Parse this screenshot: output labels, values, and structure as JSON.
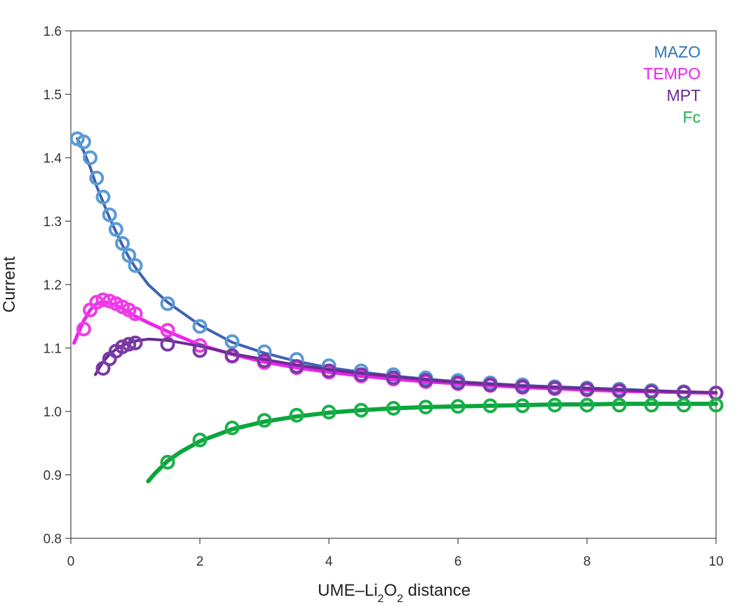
{
  "chart_data": {
    "type": "line",
    "ylabel": "Current",
    "xlabel": {
      "parts": [
        {
          "text": "UME–Li",
          "sub": false
        },
        {
          "text": "2",
          "sub": true
        },
        {
          "text": "O",
          "sub": false
        },
        {
          "text": "2",
          "sub": true
        },
        {
          "text": " distance",
          "sub": false
        }
      ]
    },
    "xlim": [
      0,
      10
    ],
    "ylim": [
      0.8,
      1.6
    ],
    "xticks": [
      0,
      2,
      4,
      6,
      8,
      10
    ],
    "xtick_labels": [
      "0",
      "2",
      "4",
      "6",
      "8",
      "10"
    ],
    "yticks": [
      0.8,
      0.9,
      1.0,
      1.1,
      1.2,
      1.3,
      1.4,
      1.5,
      1.6
    ],
    "ytick_labels": [
      "0.8",
      "0.9",
      "1.0",
      "1.1",
      "1.2",
      "1.3",
      "1.4",
      "1.5",
      "1.6"
    ],
    "grid": false,
    "legend_position": "top-right",
    "series": [
      {
        "name": "MAZO",
        "marker_color": "#5b9bd5",
        "line_color": "#3f62b5",
        "label_color": "#2e75b6",
        "line_width": 4,
        "line": {
          "x": [
            0.1,
            0.2,
            0.3,
            0.4,
            0.5,
            0.6,
            0.7,
            0.8,
            0.9,
            1.0,
            1.2,
            1.5,
            2.0,
            2.5,
            3.0,
            3.5,
            4.0,
            4.5,
            5.0,
            5.5,
            6.0,
            6.5,
            7.0,
            7.5,
            8.0,
            8.5,
            9.0,
            9.5,
            10.0
          ],
          "y": [
            1.43,
            1.41,
            1.385,
            1.355,
            1.33,
            1.305,
            1.283,
            1.262,
            1.243,
            1.227,
            1.2,
            1.172,
            1.136,
            1.109,
            1.092,
            1.079,
            1.069,
            1.062,
            1.056,
            1.051,
            1.047,
            1.044,
            1.041,
            1.039,
            1.037,
            1.035,
            1.033,
            1.031,
            1.029
          ]
        },
        "points": {
          "x": [
            0.1,
            0.2,
            0.3,
            0.4,
            0.5,
            0.6,
            0.7,
            0.8,
            0.9,
            1.0,
            1.5,
            2.0,
            2.5,
            3.0,
            3.5,
            4.0,
            4.5,
            5.0,
            5.5,
            6.0,
            6.5,
            7.0,
            7.5,
            8.0,
            8.5,
            9.0,
            9.5,
            10.0
          ],
          "y": [
            1.43,
            1.425,
            1.4,
            1.368,
            1.338,
            1.31,
            1.287,
            1.265,
            1.246,
            1.23,
            1.17,
            1.134,
            1.11,
            1.094,
            1.082,
            1.072,
            1.064,
            1.058,
            1.053,
            1.049,
            1.045,
            1.042,
            1.039,
            1.037,
            1.035,
            1.033,
            1.031,
            1.029
          ]
        }
      },
      {
        "name": "TEMPO",
        "marker_color": "#ee3ce6",
        "line_color": "#ee22ee",
        "label_color": "#ee22ee",
        "line_width": 5,
        "line": {
          "x": [
            0.05,
            0.1,
            0.2,
            0.3,
            0.4,
            0.5,
            0.6,
            0.7,
            0.8,
            0.9,
            1.0,
            1.2,
            1.5,
            2.0,
            2.5,
            3.0,
            3.5,
            4.0,
            4.5,
            5.0,
            5.5,
            6.0,
            6.5,
            7.0,
            7.5,
            8.0,
            8.5,
            9.0,
            9.5,
            10.0
          ],
          "y": [
            1.108,
            1.12,
            1.143,
            1.16,
            1.17,
            1.173,
            1.171,
            1.167,
            1.162,
            1.156,
            1.15,
            1.14,
            1.126,
            1.105,
            1.09,
            1.078,
            1.069,
            1.062,
            1.056,
            1.051,
            1.047,
            1.044,
            1.041,
            1.038,
            1.036,
            1.034,
            1.032,
            1.031,
            1.03,
            1.029
          ]
        },
        "points": {
          "x": [
            0.2,
            0.3,
            0.4,
            0.5,
            0.6,
            0.7,
            0.8,
            0.9,
            1.0,
            1.5,
            2.0,
            2.5,
            3.0,
            3.5,
            4.0,
            4.5,
            5.0,
            5.5,
            6.0,
            6.5,
            7.0,
            7.5,
            8.0,
            8.5,
            9.0,
            9.5,
            10.0
          ],
          "y": [
            1.13,
            1.16,
            1.172,
            1.176,
            1.174,
            1.17,
            1.165,
            1.16,
            1.154,
            1.128,
            1.104,
            1.087,
            1.077,
            1.069,
            1.062,
            1.056,
            1.051,
            1.047,
            1.044,
            1.041,
            1.038,
            1.036,
            1.034,
            1.032,
            1.031,
            1.03,
            1.029
          ]
        }
      },
      {
        "name": "MPT",
        "marker_color": "#7a3aa6",
        "line_color": "#6a2c91",
        "label_color": "#6a2c91",
        "line_width": 4,
        "line": {
          "x": [
            0.38,
            0.45,
            0.5,
            0.6,
            0.7,
            0.8,
            0.9,
            1.0,
            1.2,
            1.5,
            2.0,
            2.5,
            3.0,
            3.5,
            4.0,
            4.5,
            5.0,
            5.5,
            6.0,
            6.5,
            7.0,
            7.5,
            8.0,
            8.5,
            9.0,
            9.5,
            10.0
          ],
          "y": [
            1.058,
            1.07,
            1.078,
            1.09,
            1.098,
            1.104,
            1.108,
            1.111,
            1.114,
            1.112,
            1.103,
            1.091,
            1.082,
            1.073,
            1.066,
            1.06,
            1.055,
            1.05,
            1.046,
            1.043,
            1.04,
            1.038,
            1.036,
            1.034,
            1.032,
            1.031,
            1.03
          ]
        },
        "points": {
          "x": [
            0.5,
            0.6,
            0.7,
            0.8,
            0.9,
            1.0,
            1.5,
            2.0,
            2.5,
            3.0,
            3.5,
            4.0,
            4.5,
            5.0,
            5.5,
            6.0,
            6.5,
            7.0,
            7.5,
            8.0,
            8.5,
            9.0,
            9.5,
            10.0
          ],
          "y": [
            1.068,
            1.083,
            1.095,
            1.102,
            1.106,
            1.108,
            1.106,
            1.096,
            1.088,
            1.08,
            1.071,
            1.064,
            1.058,
            1.053,
            1.049,
            1.045,
            1.042,
            1.039,
            1.037,
            1.035,
            1.033,
            1.031,
            1.03,
            1.029
          ]
        }
      },
      {
        "name": "Fc",
        "marker_color": "#19b04b",
        "line_color": "#0aa53c",
        "label_color": "#19b04b",
        "line_width": 6,
        "line": {
          "x": [
            1.2,
            1.3,
            1.4,
            1.5,
            1.7,
            2.0,
            2.5,
            3.0,
            3.5,
            4.0,
            4.5,
            5.0,
            5.5,
            6.0,
            6.5,
            7.0,
            7.5,
            8.0,
            8.5,
            9.0,
            9.5,
            10.0
          ],
          "y": [
            0.89,
            0.902,
            0.912,
            0.922,
            0.936,
            0.953,
            0.972,
            0.984,
            0.992,
            0.998,
            1.002,
            1.005,
            1.007,
            1.008,
            1.009,
            1.01,
            1.011,
            1.011,
            1.012,
            1.012,
            1.012,
            1.012
          ]
        },
        "points": {
          "x": [
            1.5,
            2.0,
            2.5,
            3.0,
            3.5,
            4.0,
            4.5,
            5.0,
            5.5,
            6.0,
            6.5,
            7.0,
            7.5,
            8.0,
            8.5,
            9.0,
            9.5,
            10.0
          ],
          "y": [
            0.92,
            0.955,
            0.974,
            0.986,
            0.994,
            0.999,
            1.002,
            1.005,
            1.007,
            1.008,
            1.009,
            1.009,
            1.01,
            1.01,
            1.01,
            1.01,
            1.01,
            1.01
          ]
        }
      }
    ]
  }
}
